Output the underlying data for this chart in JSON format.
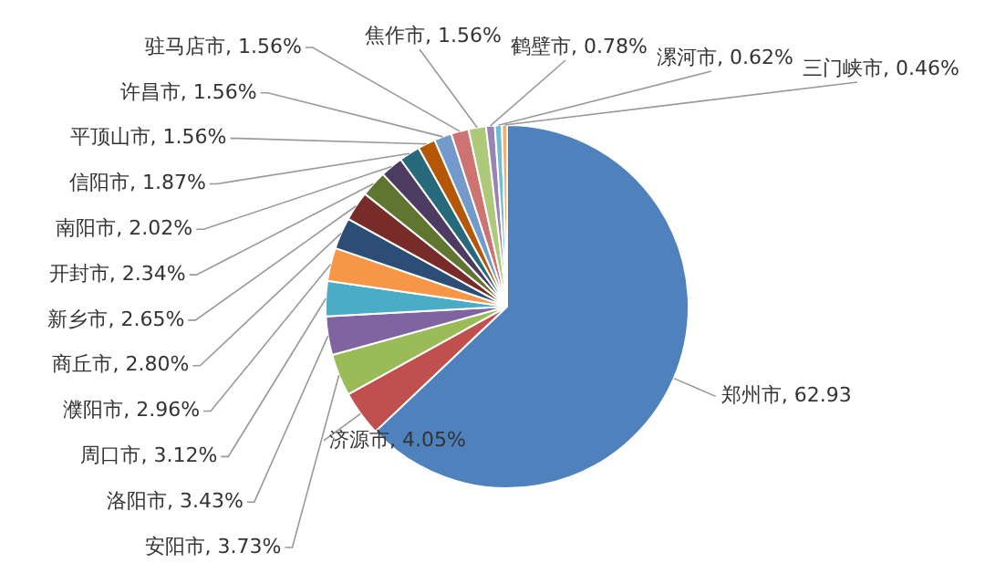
{
  "chart_data": {
    "type": "pie",
    "categories": [
      "郑州市",
      "济源市",
      "安阳市",
      "洛阳市",
      "周口市",
      "濮阳市",
      "商丘市",
      "新乡市",
      "开封市",
      "南阳市",
      "信阳市",
      "平顶山市",
      "许昌市",
      "驻马店市",
      "焦作市",
      "鹤壁市",
      "漯河市",
      "三门峡市"
    ],
    "values": [
      62.93,
      4.05,
      3.73,
      3.43,
      3.12,
      2.96,
      2.8,
      2.65,
      2.34,
      2.02,
      1.87,
      1.56,
      1.56,
      1.56,
      1.56,
      0.78,
      0.62,
      0.46
    ],
    "value_labels": [
      "62.93",
      "4.05%",
      "3.73%",
      "3.43%",
      "3.12%",
      "2.96%",
      "2.80%",
      "2.65%",
      "2.34%",
      "2.02%",
      "1.87%",
      "1.56%",
      "1.56%",
      "1.56%",
      "1.56%",
      "0.78%",
      "0.62%",
      "0.46%"
    ],
    "colors": [
      "#4f81bd",
      "#c0504d",
      "#9bbb59",
      "#8064a2",
      "#4bacc6",
      "#f79646",
      "#2c4d75",
      "#772c2a",
      "#5f7530",
      "#4d3b62",
      "#276a7c",
      "#b65708",
      "#729aca",
      "#cd7371",
      "#afc97a",
      "#9983b5",
      "#6fbdd1",
      "#f9ab6b"
    ],
    "legend": false
  }
}
